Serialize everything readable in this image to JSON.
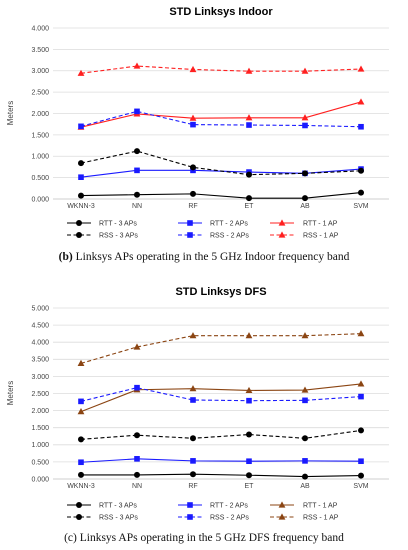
{
  "chart_data": [
    {
      "type": "line",
      "title": "STD Linksys Indoor",
      "ylabel": "Meters",
      "xlabel": "",
      "categories": [
        "WKNN-3",
        "NN",
        "RF",
        "ET",
        "AB",
        "SVM"
      ],
      "ylim": [
        0,
        4
      ],
      "yticks": [
        "0.000",
        "0.500",
        "1.000",
        "1.500",
        "2.000",
        "2.500",
        "3.000",
        "3.500",
        "4.000"
      ],
      "grid": true,
      "legend_position": "bottom",
      "series": [
        {
          "name": "RTT - 3 APs",
          "values": [
            0.08,
            0.1,
            0.12,
            0.02,
            0.02,
            0.15
          ],
          "color": "#000000",
          "dash": false,
          "marker": "circle"
        },
        {
          "name": "RTT - 2 APs",
          "values": [
            0.51,
            0.67,
            0.67,
            0.63,
            0.6,
            0.7
          ],
          "color": "#1a1aff",
          "dash": false,
          "marker": "square"
        },
        {
          "name": "RTT - 1 AP",
          "values": [
            1.68,
            1.99,
            1.89,
            1.9,
            1.9,
            2.27
          ],
          "color": "#ff2020",
          "dash": false,
          "marker": "triangle"
        },
        {
          "name": "RSS - 3 APs",
          "values": [
            0.84,
            1.12,
            0.74,
            0.57,
            0.6,
            0.66
          ],
          "color": "#000000",
          "dash": true,
          "marker": "circle"
        },
        {
          "name": "RSS - 2 APs",
          "values": [
            1.7,
            2.05,
            1.74,
            1.73,
            1.72,
            1.69
          ],
          "color": "#1a1aff",
          "dash": true,
          "marker": "square"
        },
        {
          "name": "RSS - 1 AP",
          "values": [
            2.94,
            3.11,
            3.03,
            2.99,
            2.99,
            3.04
          ],
          "color": "#ff2020",
          "dash": true,
          "marker": "triangle"
        }
      ]
    },
    {
      "type": "line",
      "title": "STD Linksys DFS",
      "ylabel": "Meters",
      "xlabel": "",
      "categories": [
        "WKNN-3",
        "NN",
        "RF",
        "ET",
        "AB",
        "SVM"
      ],
      "ylim": [
        0,
        5
      ],
      "yticks": [
        "0.000",
        "0.500",
        "1.000",
        "1.500",
        "2.000",
        "2.500",
        "3.000",
        "3.500",
        "4.000",
        "4.500",
        "5.000"
      ],
      "grid": true,
      "legend_position": "bottom",
      "series": [
        {
          "name": "RTT - 3 APs",
          "values": [
            0.12,
            0.12,
            0.14,
            0.11,
            0.07,
            0.1
          ],
          "color": "#000000",
          "dash": false,
          "marker": "circle"
        },
        {
          "name": "RTT - 2 APs",
          "values": [
            0.49,
            0.59,
            0.53,
            0.52,
            0.53,
            0.52
          ],
          "color": "#1a1aff",
          "dash": false,
          "marker": "square"
        },
        {
          "name": "RTT - 1 AP",
          "values": [
            1.97,
            2.61,
            2.64,
            2.59,
            2.6,
            2.78
          ],
          "color": "#8b4513",
          "dash": false,
          "marker": "triangle"
        },
        {
          "name": "RSS - 3 APs",
          "values": [
            1.16,
            1.28,
            1.19,
            1.3,
            1.19,
            1.42
          ],
          "color": "#000000",
          "dash": true,
          "marker": "circle"
        },
        {
          "name": "RSS - 2 APs",
          "values": [
            2.27,
            2.67,
            2.31,
            2.29,
            2.3,
            2.41
          ],
          "color": "#1a1aff",
          "dash": true,
          "marker": "square"
        },
        {
          "name": "RSS - 1 AP",
          "values": [
            3.38,
            3.86,
            4.19,
            4.19,
            4.19,
            4.25
          ],
          "color": "#8b4513",
          "dash": true,
          "marker": "triangle"
        }
      ]
    }
  ],
  "captions": [
    {
      "label": "(b)",
      "text": " Linksys APs operating in the 5 GHz Indoor frequency band"
    },
    {
      "label": "(c)",
      "text": " Linksys APs operating in the 5 GHz DFS frequency band"
    }
  ]
}
